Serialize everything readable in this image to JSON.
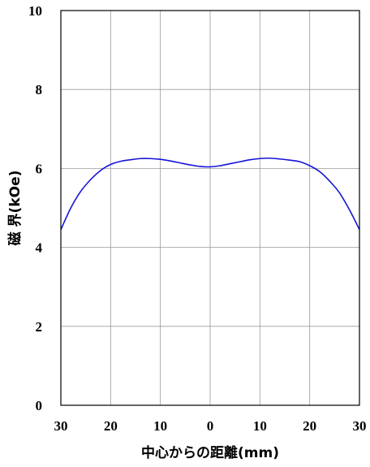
{
  "chart_data": {
    "type": "line",
    "title": "",
    "xlabel": "中心からの距離(mm)",
    "ylabel": "磁 界(kOe)",
    "xlim": [
      -30,
      30
    ],
    "ylim": [
      0,
      10
    ],
    "x_ticks": [
      -30,
      -20,
      -10,
      0,
      10,
      20,
      30
    ],
    "x_tick_labels": [
      "30",
      "20",
      "10",
      "0",
      "10",
      "20",
      "30"
    ],
    "y_ticks": [
      0,
      2,
      4,
      6,
      8,
      10
    ],
    "y_tick_labels": [
      "0",
      "2",
      "4",
      "6",
      "8",
      "10"
    ],
    "grid": true,
    "series": [
      {
        "color": "#1414d8",
        "x": [
          -30,
          -28,
          -26,
          -24,
          -22,
          -20,
          -18,
          -16,
          -14,
          -12,
          -10,
          -8,
          -6,
          -4,
          -2,
          0,
          2,
          4,
          6,
          8,
          10,
          12,
          14,
          16,
          18,
          20,
          22,
          24,
          26,
          28,
          30
        ],
        "y": [
          4.45,
          5.0,
          5.42,
          5.72,
          5.95,
          6.1,
          6.18,
          6.22,
          6.25,
          6.25,
          6.23,
          6.19,
          6.14,
          6.09,
          6.05,
          6.04,
          6.07,
          6.12,
          6.17,
          6.22,
          6.25,
          6.26,
          6.24,
          6.21,
          6.17,
          6.07,
          5.92,
          5.68,
          5.38,
          4.95,
          4.45
        ]
      }
    ]
  }
}
